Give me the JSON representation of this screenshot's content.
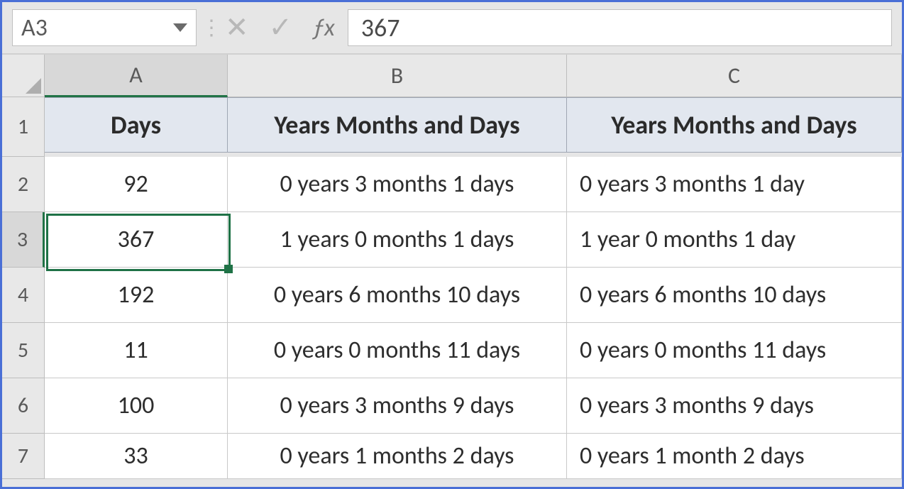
{
  "formula_bar": {
    "name_box": "A3",
    "formula_value": "367"
  },
  "columns": {
    "A": "A",
    "B": "B",
    "C": "C"
  },
  "headers": {
    "A": "Days",
    "B": "Years Months and Days",
    "C": "Years Months and Days"
  },
  "rows": [
    {
      "n": "1"
    },
    {
      "n": "2",
      "A": "92",
      "B": "0 years 3 months 1 days",
      "C": "0 years 3 months 1 day"
    },
    {
      "n": "3",
      "A": "367",
      "B": "1 years 0 months 1 days",
      "C": "1 year 0 months 1 day"
    },
    {
      "n": "4",
      "A": "192",
      "B": "0 years 6 months 10 days",
      "C": "0 years 6 months 10 days"
    },
    {
      "n": "5",
      "A": "11",
      "B": "0 years 0 months 11 days",
      "C": "0 years 0 months 11 days"
    },
    {
      "n": "6",
      "A": "100",
      "B": "0 years 3 months 9 days",
      "C": "0 years 3 months 9 days"
    },
    {
      "n": "7",
      "A": "33",
      "B": "0 years 1 months 2 days",
      "C": "0 years 1 month 2 days"
    }
  ],
  "selection": {
    "cell": "A3"
  },
  "layout": {
    "row_header_w": 60,
    "colA_w": 258,
    "colB_w": 478,
    "colC_w": 472,
    "col_head_h": 60,
    "header_row_h": 84,
    "data_row_h": 78,
    "formula_bar_h": 74
  },
  "colors": {
    "frame_border": "#4a6fd6",
    "grid_bg": "#e6e6e6",
    "col_row_head_bg": "#e8e8e8",
    "col_row_head_active_bg": "#d8d8d8",
    "selection_green": "#1f7246",
    "cell_border": "#c9c9c9",
    "header_fill": "#e2e7ef",
    "header_border": "#9fa6b3",
    "text": "#2d2d2d",
    "muted_text": "#5a5a5a",
    "icon_muted": "#b8b8b8"
  }
}
